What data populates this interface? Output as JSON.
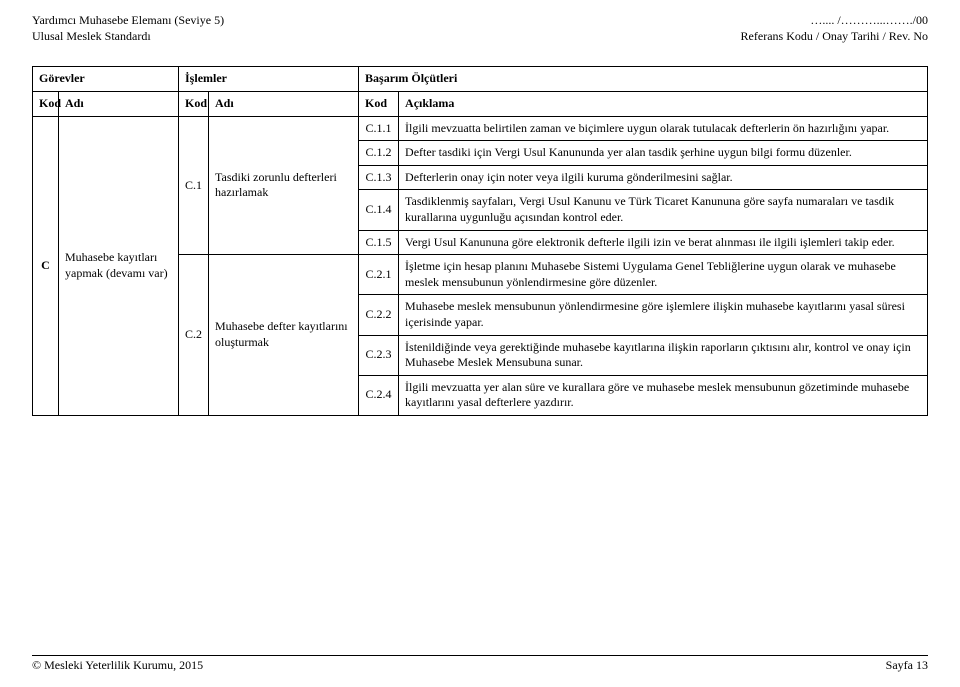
{
  "header": {
    "left_line1": "Yardımcı Muhasebe Elemanı (Seviye 5)",
    "left_line2": "Ulusal Meslek Standardı",
    "right_line1": "….... /………...……./00",
    "right_line2": "Referans Kodu / Onay Tarihi / Rev. No"
  },
  "table": {
    "group_headers": {
      "g1": "Görevler",
      "g2": "İşlemler",
      "g3": "Başarım Ölçütleri"
    },
    "sub_headers": {
      "kod": "Kod",
      "adi": "Adı",
      "aciklama": "Açıklama"
    },
    "task": {
      "code": "C",
      "name": "Muhasebe kayıtları yapmak (devamı var)"
    },
    "ops": [
      {
        "code": "C.1",
        "name": "Tasdiki zorunlu defterleri hazırlamak"
      },
      {
        "code": "C.2",
        "name": "Muhasebe defter kayıtlarını oluşturmak"
      }
    ],
    "criteria": [
      {
        "code": "C.1.1",
        "text": "İlgili mevzuatta belirtilen zaman ve biçimlere uygun olarak tutulacak defterlerin ön hazırlığını yapar."
      },
      {
        "code": "C.1.2",
        "text": "Defter tasdiki için Vergi Usul Kanununda yer alan tasdik şerhine uygun bilgi formu düzenler."
      },
      {
        "code": "C.1.3",
        "text": "Defterlerin onay için noter veya ilgili kuruma gönderilmesini sağlar."
      },
      {
        "code": "C.1.4",
        "text": "Tasdiklenmiş sayfaları, Vergi Usul Kanunu ve Türk Ticaret Kanununa göre sayfa numaraları ve tasdik kurallarına uygunluğu açısından kontrol eder."
      },
      {
        "code": "C.1.5",
        "text": "Vergi Usul Kanununa göre elektronik defterle ilgili izin ve berat alınması ile ilgili işlemleri takip eder."
      },
      {
        "code": "C.2.1",
        "text": "İşletme için hesap planını Muhasebe Sistemi Uygulama Genel Tebliğlerine uygun olarak ve muhasebe meslek mensubunun yönlendirmesine göre düzenler."
      },
      {
        "code": "C.2.2",
        "text": "Muhasebe meslek mensubunun yönlendirmesine göre işlemlere ilişkin muhasebe kayıtlarını yasal süresi içerisinde yapar."
      },
      {
        "code": "C.2.3",
        "text": "İstenildiğinde veya gerektiğinde muhasebe kayıtlarına ilişkin raporların çıktısını alır, kontrol ve onay için Muhasebe Meslek Mensubuna sunar."
      },
      {
        "code": "C.2.4",
        "text": "İlgili mevzuatta yer alan süre ve kurallara göre ve muhasebe meslek mensubunun gözetiminde muhasebe kayıtlarını yasal defterlere yazdırır."
      }
    ]
  },
  "footer": {
    "left": "© Mesleki Yeterlilik Kurumu, 2015",
    "right": "Sayfa 13"
  }
}
